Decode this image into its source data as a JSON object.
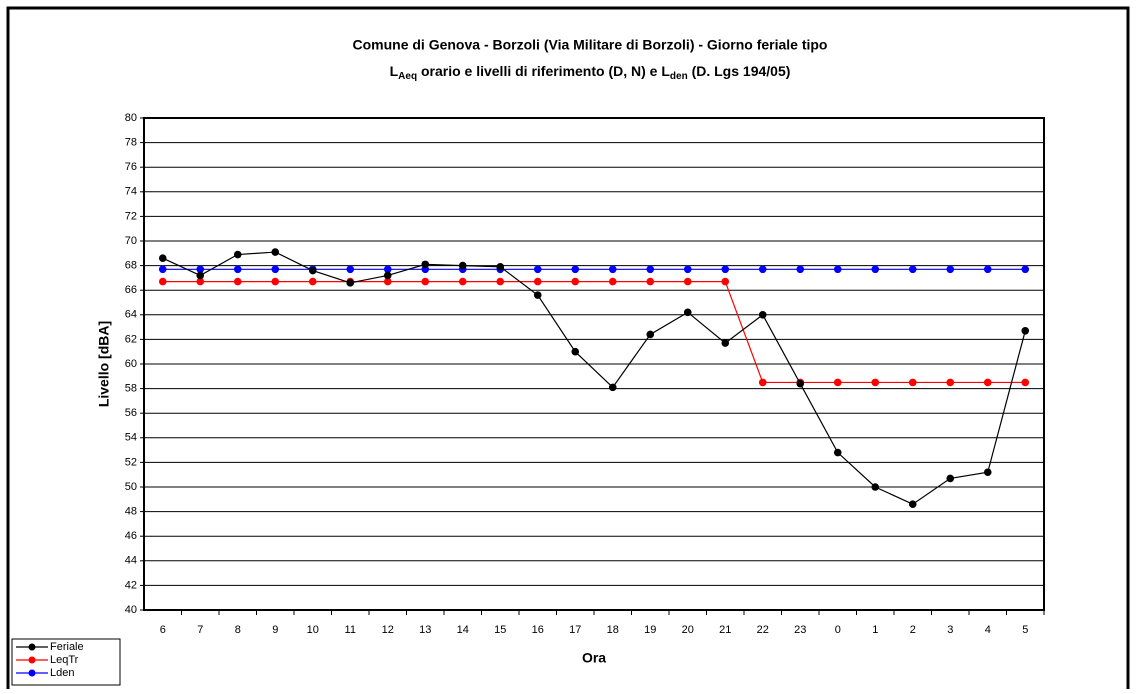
{
  "chart_data": {
    "type": "line",
    "title": "Comune di Genova - Borzoli (Via Militare di Borzoli) - Giorno feriale tipo",
    "subtitle_parts": [
      "L",
      "Aeq",
      " orario e livelli di riferimento (D, N) e L",
      "den",
      " (D. Lgs 194/05)"
    ],
    "x_label": "Ora",
    "y_label": "Livello [dBA]",
    "categories": [
      "6",
      "7",
      "8",
      "9",
      "10",
      "11",
      "12",
      "13",
      "14",
      "15",
      "16",
      "17",
      "18",
      "19",
      "20",
      "21",
      "22",
      "23",
      "0",
      "1",
      "2",
      "3",
      "4",
      "5"
    ],
    "series": [
      {
        "name": "Feriale",
        "color": "#000000",
        "values": [
          68.6,
          67.2,
          68.9,
          69.1,
          67.6,
          66.6,
          67.2,
          68.1,
          68.0,
          67.9,
          65.6,
          61.0,
          58.1,
          62.4,
          64.2,
          61.7,
          64.0,
          58.4,
          52.8,
          50.0,
          48.6,
          50.7,
          51.2,
          62.7
        ]
      },
      {
        "name": "LeqTr",
        "color": "#ff0000",
        "values": [
          66.7,
          66.7,
          66.7,
          66.7,
          66.7,
          66.7,
          66.7,
          66.7,
          66.7,
          66.7,
          66.7,
          66.7,
          66.7,
          66.7,
          66.7,
          66.7,
          58.5,
          58.5,
          58.5,
          58.5,
          58.5,
          58.5,
          58.5,
          58.5
        ]
      },
      {
        "name": "Lden",
        "color": "#0000ff",
        "values": [
          67.7,
          67.7,
          67.7,
          67.7,
          67.7,
          67.7,
          67.7,
          67.7,
          67.7,
          67.7,
          67.7,
          67.7,
          67.7,
          67.7,
          67.7,
          67.7,
          67.7,
          67.7,
          67.7,
          67.7,
          67.7,
          67.7,
          67.7,
          67.7
        ]
      }
    ],
    "ylim": [
      40,
      80
    ],
    "yticks": [
      40,
      42,
      44,
      46,
      48,
      50,
      52,
      54,
      56,
      58,
      60,
      62,
      64,
      66,
      68,
      70,
      72,
      74,
      76,
      78,
      80
    ],
    "grid": true,
    "legend": "bottom-left"
  }
}
